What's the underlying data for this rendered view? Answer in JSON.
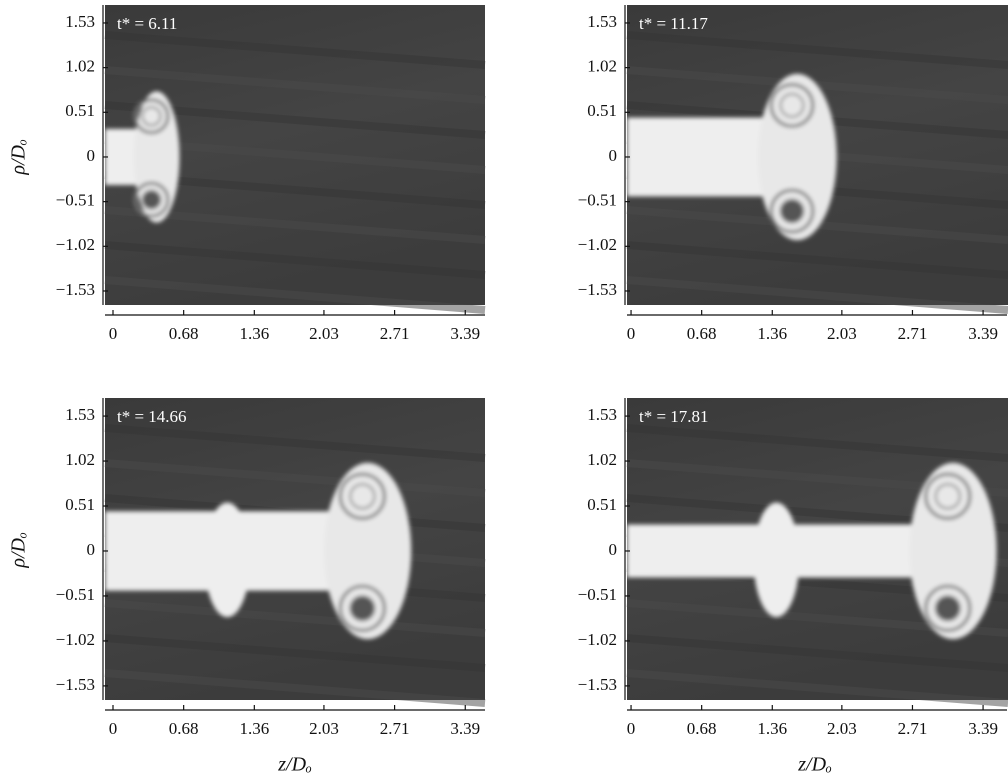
{
  "xlabel": "z/Dₒ",
  "ylabel": "ρ/Dₒ",
  "panels": [
    {
      "annotation": "t* = 6.11",
      "xlim": [
        -0.077,
        3.58
      ],
      "ylim": [
        -1.69,
        1.735
      ],
      "xticks": [
        0,
        0.68,
        1.36,
        2.03,
        2.71,
        3.39
      ],
      "yticks": [
        1.53,
        1.02,
        0.51,
        0,
        {
          "value": -0.51,
          "label": "−0.51"
        },
        {
          "value": -1.02,
          "label": "−1.02"
        },
        {
          "value": -1.53,
          "label": "−1.53"
        }
      ]
    },
    {
      "annotation": "t* = 11.17",
      "xlim": [
        -0.039,
        3.63
      ],
      "ylim": [
        -1.69,
        1.735
      ],
      "xticks": [
        0,
        0.68,
        1.36,
        2.03,
        2.71,
        3.39
      ],
      "yticks": [
        1.53,
        1.02,
        0.51,
        0,
        {
          "value": -0.51,
          "label": "−0.51"
        },
        {
          "value": -1.02,
          "label": "−1.02"
        },
        {
          "value": -1.53,
          "label": "−1.53"
        }
      ]
    },
    {
      "annotation": "t* = 14.66",
      "xlim": [
        -0.077,
        3.58
      ],
      "ylim": [
        -1.69,
        1.735
      ],
      "xticks": [
        0,
        0.68,
        1.36,
        2.03,
        2.71,
        3.39
      ],
      "yticks": [
        1.53,
        1.02,
        0.51,
        0,
        {
          "value": -0.51,
          "label": "−0.51"
        },
        {
          "value": -1.02,
          "label": "−1.02"
        },
        {
          "value": -1.53,
          "label": "−1.53"
        }
      ]
    },
    {
      "annotation": "t* = 17.81",
      "xlim": [
        -0.039,
        3.63
      ],
      "ylim": [
        -1.69,
        1.735
      ],
      "xticks": [
        0,
        0.68,
        1.36,
        2.03,
        2.71,
        3.39
      ],
      "yticks": [
        1.53,
        1.02,
        0.51,
        0,
        {
          "value": -0.51,
          "label": "−0.51"
        },
        {
          "value": -1.02,
          "label": "−1.02"
        },
        {
          "value": -1.53,
          "label": "−1.53"
        }
      ]
    }
  ]
}
